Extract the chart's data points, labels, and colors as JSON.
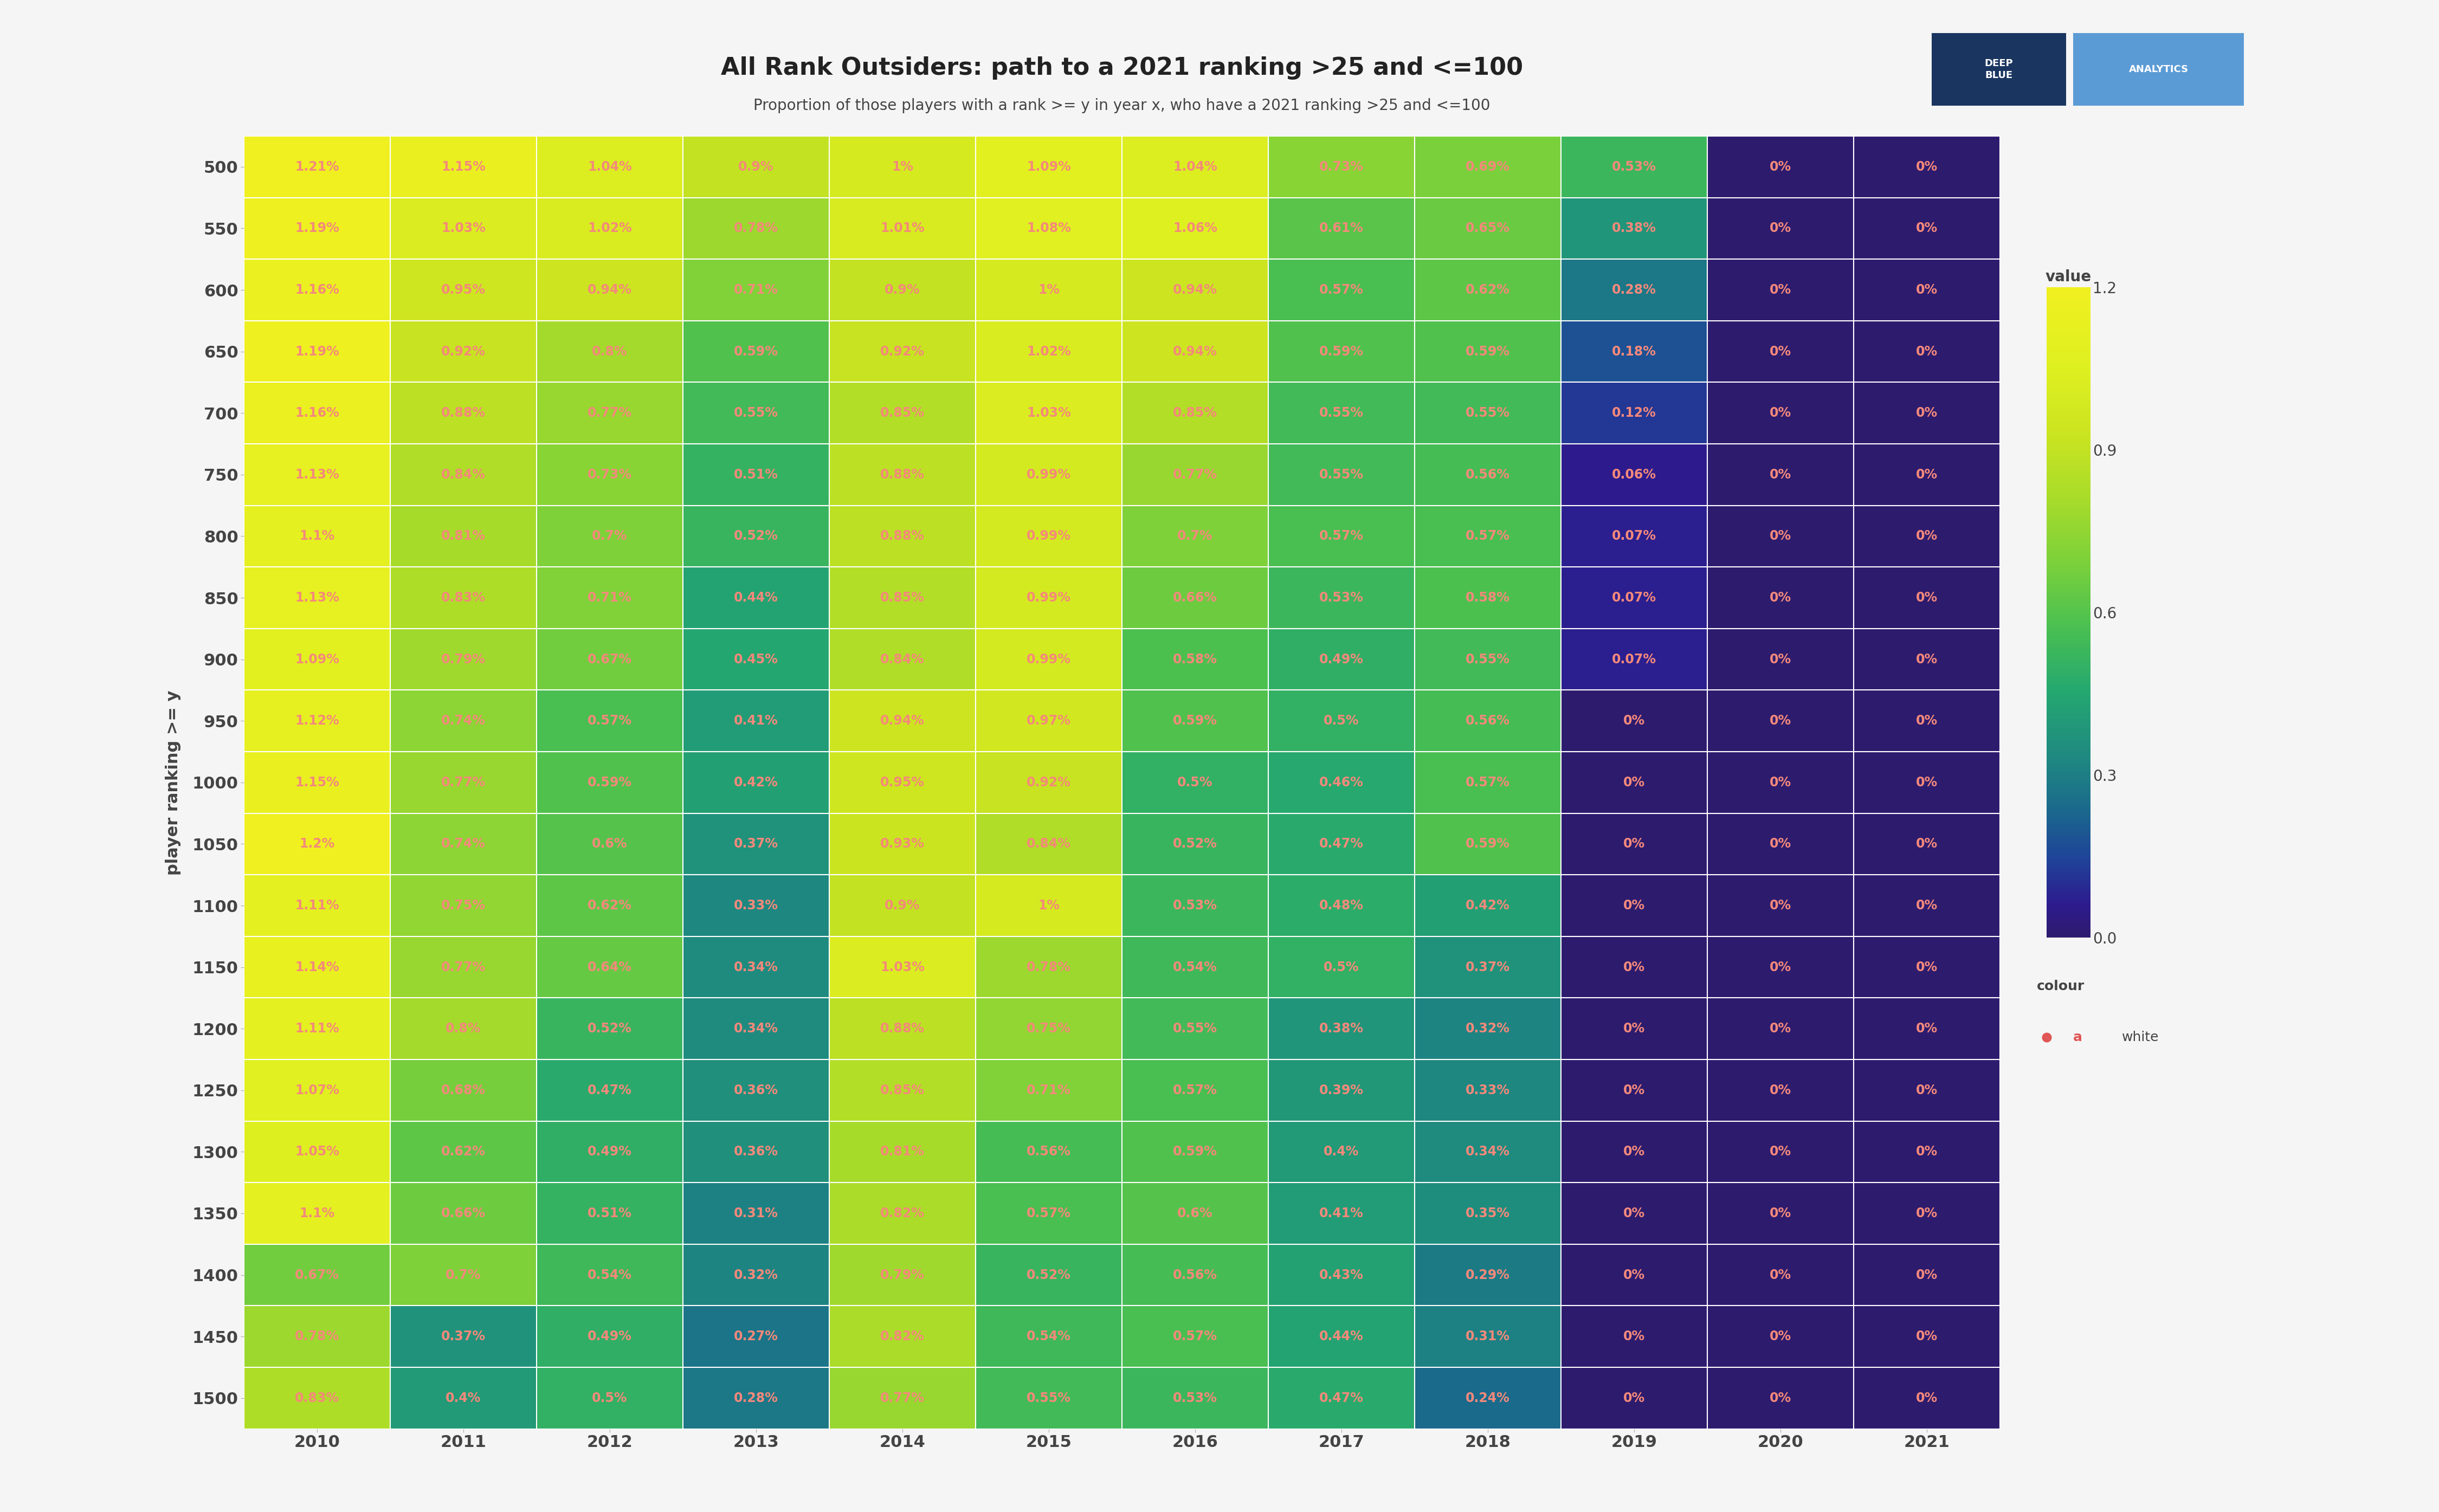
{
  "title": "All Rank Outsiders: path to a 2021 ranking >25 and <=100",
  "subtitle": "Proportion of those players with a rank >= y in year x, who have a 2021 ranking >25 and <=100",
  "ylabel": "player ranking >= y",
  "years": [
    2010,
    2011,
    2012,
    2013,
    2014,
    2015,
    2016,
    2017,
    2018,
    2019,
    2020,
    2021
  ],
  "y_ranks": [
    500,
    550,
    600,
    650,
    700,
    750,
    800,
    850,
    900,
    950,
    1000,
    1050,
    1100,
    1150,
    1200,
    1250,
    1300,
    1350,
    1400,
    1450,
    1500
  ],
  "values": [
    [
      1.21,
      1.15,
      1.04,
      0.9,
      1.0,
      1.09,
      1.04,
      0.73,
      0.69,
      0.53,
      0.0,
      0.0
    ],
    [
      1.19,
      1.03,
      1.02,
      0.78,
      1.01,
      1.08,
      1.06,
      0.61,
      0.65,
      0.38,
      0.0,
      0.0
    ],
    [
      1.16,
      0.95,
      0.94,
      0.71,
      0.9,
      1.0,
      0.94,
      0.57,
      0.62,
      0.28,
      0.0,
      0.0
    ],
    [
      1.19,
      0.92,
      0.8,
      0.59,
      0.92,
      1.02,
      0.94,
      0.59,
      0.59,
      0.18,
      0.0,
      0.0
    ],
    [
      1.16,
      0.88,
      0.77,
      0.55,
      0.85,
      1.03,
      0.85,
      0.55,
      0.55,
      0.12,
      0.0,
      0.0
    ],
    [
      1.13,
      0.84,
      0.73,
      0.51,
      0.88,
      0.99,
      0.77,
      0.55,
      0.56,
      0.06,
      0.0,
      0.0
    ],
    [
      1.1,
      0.81,
      0.7,
      0.52,
      0.88,
      0.99,
      0.7,
      0.57,
      0.57,
      0.07,
      0.0,
      0.0
    ],
    [
      1.13,
      0.83,
      0.71,
      0.44,
      0.85,
      0.99,
      0.66,
      0.53,
      0.58,
      0.07,
      0.0,
      0.0
    ],
    [
      1.09,
      0.79,
      0.67,
      0.45,
      0.84,
      0.99,
      0.58,
      0.49,
      0.55,
      0.07,
      0.0,
      0.0
    ],
    [
      1.12,
      0.74,
      0.57,
      0.41,
      0.94,
      0.97,
      0.59,
      0.5,
      0.56,
      0.0,
      0.0,
      0.0
    ],
    [
      1.15,
      0.77,
      0.59,
      0.42,
      0.95,
      0.92,
      0.5,
      0.46,
      0.57,
      0.0,
      0.0,
      0.0
    ],
    [
      1.2,
      0.74,
      0.6,
      0.37,
      0.93,
      0.84,
      0.52,
      0.47,
      0.59,
      0.0,
      0.0,
      0.0
    ],
    [
      1.11,
      0.75,
      0.62,
      0.33,
      0.9,
      1.0,
      0.53,
      0.48,
      0.42,
      0.0,
      0.0,
      0.0
    ],
    [
      1.14,
      0.77,
      0.64,
      0.34,
      1.03,
      0.78,
      0.54,
      0.5,
      0.37,
      0.0,
      0.0,
      0.0
    ],
    [
      1.11,
      0.8,
      0.52,
      0.34,
      0.88,
      0.75,
      0.55,
      0.38,
      0.32,
      0.0,
      0.0,
      0.0
    ],
    [
      1.07,
      0.68,
      0.47,
      0.36,
      0.85,
      0.71,
      0.57,
      0.39,
      0.33,
      0.0,
      0.0,
      0.0
    ],
    [
      1.05,
      0.62,
      0.49,
      0.36,
      0.81,
      0.56,
      0.59,
      0.4,
      0.34,
      0.0,
      0.0,
      0.0
    ],
    [
      1.1,
      0.66,
      0.51,
      0.31,
      0.82,
      0.57,
      0.6,
      0.41,
      0.35,
      0.0,
      0.0,
      0.0
    ],
    [
      0.67,
      0.7,
      0.54,
      0.32,
      0.79,
      0.52,
      0.56,
      0.43,
      0.29,
      0.0,
      0.0,
      0.0
    ],
    [
      0.78,
      0.37,
      0.49,
      0.27,
      0.82,
      0.54,
      0.57,
      0.44,
      0.31,
      0.0,
      0.0,
      0.0
    ],
    [
      0.83,
      0.4,
      0.5,
      0.28,
      0.77,
      0.55,
      0.53,
      0.47,
      0.24,
      0.0,
      0.0,
      0.0
    ]
  ],
  "text_labels": [
    [
      "1.21%",
      "1.15%",
      "1.04%",
      "0.9%",
      "1%",
      "1.09%",
      "1.04%",
      "0.73%",
      "0.69%",
      "0.53%",
      "0%",
      "0%"
    ],
    [
      "1.19%",
      "1.03%",
      "1.02%",
      "0.78%",
      "1.01%",
      "1.08%",
      "1.06%",
      "0.61%",
      "0.65%",
      "0.38%",
      "0%",
      "0%"
    ],
    [
      "1.16%",
      "0.95%",
      "0.94%",
      "0.71%",
      "0.9%",
      "1%",
      "0.94%",
      "0.57%",
      "0.62%",
      "0.28%",
      "0%",
      "0%"
    ],
    [
      "1.19%",
      "0.92%",
      "0.8%",
      "0.59%",
      "0.92%",
      "1.02%",
      "0.94%",
      "0.59%",
      "0.59%",
      "0.18%",
      "0%",
      "0%"
    ],
    [
      "1.16%",
      "0.88%",
      "0.77%",
      "0.55%",
      "0.85%",
      "1.03%",
      "0.85%",
      "0.55%",
      "0.55%",
      "0.12%",
      "0%",
      "0%"
    ],
    [
      "1.13%",
      "0.84%",
      "0.73%",
      "0.51%",
      "0.88%",
      "0.99%",
      "0.77%",
      "0.55%",
      "0.56%",
      "0.06%",
      "0%",
      "0%"
    ],
    [
      "1.1%",
      "0.81%",
      "0.7%",
      "0.52%",
      "0.88%",
      "0.99%",
      "0.7%",
      "0.57%",
      "0.57%",
      "0.07%",
      "0%",
      "0%"
    ],
    [
      "1.13%",
      "0.83%",
      "0.71%",
      "0.44%",
      "0.85%",
      "0.99%",
      "0.66%",
      "0.53%",
      "0.58%",
      "0.07%",
      "0%",
      "0%"
    ],
    [
      "1.09%",
      "0.79%",
      "0.67%",
      "0.45%",
      "0.84%",
      "0.99%",
      "0.58%",
      "0.49%",
      "0.55%",
      "0.07%",
      "0%",
      "0%"
    ],
    [
      "1.12%",
      "0.74%",
      "0.57%",
      "0.41%",
      "0.94%",
      "0.97%",
      "0.59%",
      "0.5%",
      "0.56%",
      "0%",
      "0%",
      "0%"
    ],
    [
      "1.15%",
      "0.77%",
      "0.59%",
      "0.42%",
      "0.95%",
      "0.92%",
      "0.5%",
      "0.46%",
      "0.57%",
      "0%",
      "0%",
      "0%"
    ],
    [
      "1.2%",
      "0.74%",
      "0.6%",
      "0.37%",
      "0.93%",
      "0.84%",
      "0.52%",
      "0.47%",
      "0.59%",
      "0%",
      "0%",
      "0%"
    ],
    [
      "1.11%",
      "0.75%",
      "0.62%",
      "0.33%",
      "0.9%",
      "1%",
      "0.53%",
      "0.48%",
      "0.42%",
      "0%",
      "0%",
      "0%"
    ],
    [
      "1.14%",
      "0.77%",
      "0.64%",
      "0.34%",
      "1.03%",
      "0.78%",
      "0.54%",
      "0.5%",
      "0.37%",
      "0%",
      "0%",
      "0%"
    ],
    [
      "1.11%",
      "0.8%",
      "0.52%",
      "0.34%",
      "0.88%",
      "0.75%",
      "0.55%",
      "0.38%",
      "0.32%",
      "0%",
      "0%",
      "0%"
    ],
    [
      "1.07%",
      "0.68%",
      "0.47%",
      "0.36%",
      "0.85%",
      "0.71%",
      "0.57%",
      "0.39%",
      "0.33%",
      "0%",
      "0%",
      "0%"
    ],
    [
      "1.05%",
      "0.62%",
      "0.49%",
      "0.36%",
      "0.81%",
      "0.56%",
      "0.59%",
      "0.4%",
      "0.34%",
      "0%",
      "0%",
      "0%"
    ],
    [
      "1.1%",
      "0.66%",
      "0.51%",
      "0.31%",
      "0.82%",
      "0.57%",
      "0.6%",
      "0.41%",
      "0.35%",
      "0%",
      "0%",
      "0%"
    ],
    [
      "0.67%",
      "0.7%",
      "0.54%",
      "0.32%",
      "0.79%",
      "0.52%",
      "0.56%",
      "0.43%",
      "0.29%",
      "0%",
      "0%",
      "0%"
    ],
    [
      "0.78%",
      "0.37%",
      "0.49%",
      "0.27%",
      "0.82%",
      "0.54%",
      "0.57%",
      "0.44%",
      "0.31%",
      "0%",
      "0%",
      "0%"
    ],
    [
      "0.83%",
      "0.4%",
      "0.5%",
      "0.28%",
      "0.77%",
      "0.55%",
      "0.53%",
      "0.47%",
      "0.24%",
      "0%",
      "0%",
      "0%"
    ]
  ],
  "text_color": "#f4897b",
  "vmin": 0.0,
  "vmax": 1.2,
  "colorbar_ticks": [
    0.0,
    0.3,
    0.6,
    0.9,
    1.2
  ],
  "bg_color": "#f5f5f5",
  "logo_text1": "DEEP\nBLUE",
  "logo_text2": "ANALYTICS",
  "logo_bg1": "#1a3560",
  "logo_bg2": "#5b9bd5",
  "title_fontsize": 32,
  "subtitle_fontsize": 20,
  "tick_fontsize": 22,
  "cell_fontsize": 17,
  "ylabel_fontsize": 22
}
